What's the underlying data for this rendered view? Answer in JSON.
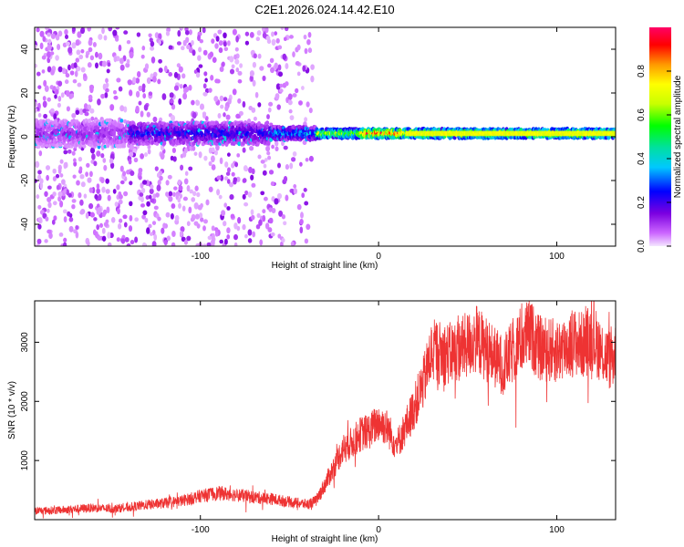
{
  "title": "C2E1.2026.024.14.42.E10",
  "chart_data": [
    {
      "type": "heatmap",
      "name": "spectrogram",
      "xlabel": "Height of straight line (km)",
      "ylabel": "Frequency (Hz)",
      "xlim": [
        -193,
        133
      ],
      "ylim": [
        -50,
        50
      ],
      "xticks": [
        -100,
        0,
        100
      ],
      "yticks": [
        -40,
        -20,
        0,
        20,
        40
      ],
      "grid": false,
      "colorbar": {
        "label": "Normalized spectral amplitude",
        "range": [
          0.0,
          1.0
        ],
        "ticks": [
          0.0,
          0.2,
          0.4,
          0.6,
          0.8
        ],
        "tick_labels": [
          "0.0",
          "0.2",
          "0.4",
          "0.6",
          "0.8"
        ],
        "colors": [
          "#f4e6ff",
          "#cc66ff",
          "#7b00e0",
          "#0000ff",
          "#00c8ff",
          "#00e0a0",
          "#00ff00",
          "#c8ff00",
          "#ffff00",
          "#ff9900",
          "#ff0000",
          "#ff0066"
        ]
      },
      "ridge": {
        "frequency_hz": 1.5,
        "segments": [
          {
            "x_start": -193,
            "x_end": -140,
            "amplitude": 0.15,
            "spread_hz": 6
          },
          {
            "x_start": -140,
            "x_end": -60,
            "amplitude": 0.25,
            "spread_hz": 5
          },
          {
            "x_start": -60,
            "x_end": -35,
            "amplitude": 0.35,
            "spread_hz": 3
          },
          {
            "x_start": -35,
            "x_end": -10,
            "amplitude": 0.65,
            "spread_hz": 2
          },
          {
            "x_start": -10,
            "x_end": 15,
            "amplitude": 0.9,
            "spread_hz": 2
          },
          {
            "x_start": 15,
            "x_end": 133,
            "amplitude": 0.75,
            "spread_hz": 2
          }
        ]
      },
      "noise_region": {
        "x_start": -193,
        "x_end": -37
      }
    },
    {
      "type": "line",
      "name": "snr",
      "xlabel": "Height of straight line (km)",
      "ylabel": "SNR (10 * v/v)",
      "xlim": [
        -193,
        133
      ],
      "ylim": [
        0,
        3700
      ],
      "xticks": [
        -100,
        0,
        100
      ],
      "yticks": [
        1000,
        2000,
        3000
      ],
      "color": "#ee3333",
      "series": [
        {
          "name": "SNR",
          "x": [
            -193,
            -180,
            -170,
            -160,
            -150,
            -140,
            -130,
            -120,
            -110,
            -100,
            -90,
            -80,
            -70,
            -60,
            -50,
            -40,
            -35,
            -30,
            -25,
            -20,
            -15,
            -10,
            -5,
            0,
            5,
            10,
            15,
            20,
            25,
            30,
            40,
            50,
            55,
            60,
            70,
            80,
            85,
            90,
            100,
            110,
            115,
            120,
            125,
            130,
            133
          ],
          "y": [
            150,
            160,
            180,
            200,
            180,
            210,
            250,
            280,
            320,
            400,
            450,
            420,
            380,
            350,
            300,
            260,
            320,
            600,
            900,
            1200,
            1300,
            1450,
            1500,
            1650,
            1550,
            1250,
            1550,
            1900,
            2300,
            2850,
            2800,
            2950,
            3050,
            2900,
            2600,
            3050,
            3150,
            2900,
            2850,
            3000,
            2950,
            3100,
            2850,
            2700,
            2800
          ]
        }
      ]
    }
  ]
}
